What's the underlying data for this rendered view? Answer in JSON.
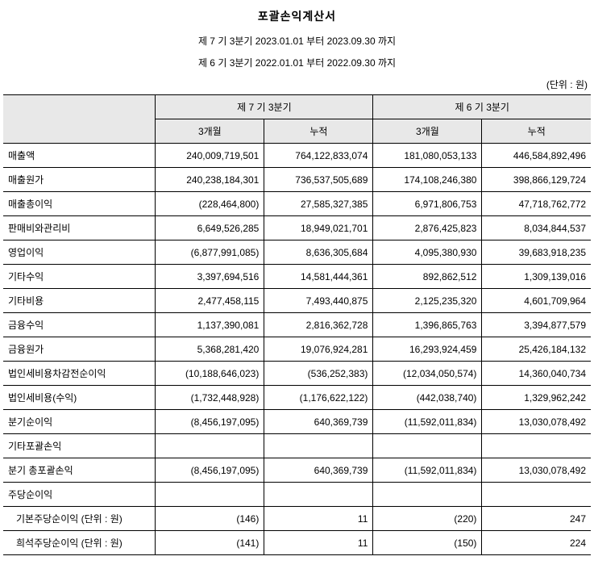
{
  "title": "포괄손익계산서",
  "subtitle1": "제 7 기 3분기 2023.01.01 부터 2023.09.30 까지",
  "subtitle2": "제 6 기 3분기 2022.01.01 부터 2022.09.30 까지",
  "unit": "(단위 : 원)",
  "colors": {
    "header_bg": "#e8e8e8",
    "border": "#000000",
    "bg": "#ffffff",
    "text": "#000000"
  },
  "columns": {
    "group1": "제 7 기 3분기",
    "group2": "제 6 기 3분기",
    "sub1": "3개월",
    "sub2": "누적"
  },
  "rows": [
    {
      "label": "매출액",
      "indent": false,
      "v": [
        "240,009,719,501",
        "764,122,833,074",
        "181,080,053,133",
        "446,584,892,496"
      ]
    },
    {
      "label": "매출원가",
      "indent": false,
      "v": [
        "240,238,184,301",
        "736,537,505,689",
        "174,108,246,380",
        "398,866,129,724"
      ]
    },
    {
      "label": "매출총이익",
      "indent": false,
      "v": [
        "(228,464,800)",
        "27,585,327,385",
        "6,971,806,753",
        "47,718,762,772"
      ]
    },
    {
      "label": "판매비와관리비",
      "indent": false,
      "v": [
        "6,649,526,285",
        "18,949,021,701",
        "2,876,425,823",
        "8,034,844,537"
      ]
    },
    {
      "label": "영업이익",
      "indent": false,
      "v": [
        "(6,877,991,085)",
        "8,636,305,684",
        "4,095,380,930",
        "39,683,918,235"
      ]
    },
    {
      "label": "기타수익",
      "indent": false,
      "v": [
        "3,397,694,516",
        "14,581,444,361",
        "892,862,512",
        "1,309,139,016"
      ]
    },
    {
      "label": "기타비용",
      "indent": false,
      "v": [
        "2,477,458,115",
        "7,493,440,875",
        "2,125,235,320",
        "4,601,709,964"
      ]
    },
    {
      "label": "금융수익",
      "indent": false,
      "v": [
        "1,137,390,081",
        "2,816,362,728",
        "1,396,865,763",
        "3,394,877,579"
      ]
    },
    {
      "label": "금융원가",
      "indent": false,
      "v": [
        "5,368,281,420",
        "19,076,924,281",
        "16,293,924,459",
        "25,426,184,132"
      ]
    },
    {
      "label": "법인세비용차감전순이익",
      "indent": false,
      "v": [
        "(10,188,646,023)",
        "(536,252,383)",
        "(12,034,050,574)",
        "14,360,040,734"
      ]
    },
    {
      "label": "법인세비용(수익)",
      "indent": false,
      "v": [
        "(1,732,448,928)",
        "(1,176,622,122)",
        "(442,038,740)",
        "1,329,962,242"
      ]
    },
    {
      "label": "분기순이익",
      "indent": false,
      "v": [
        "(8,456,197,095)",
        "640,369,739",
        "(11,592,011,834)",
        "13,030,078,492"
      ]
    },
    {
      "label": "기타포괄손익",
      "indent": false,
      "v": [
        "",
        "",
        "",
        ""
      ]
    },
    {
      "label": "분기 총포괄손익",
      "indent": false,
      "v": [
        "(8,456,197,095)",
        "640,369,739",
        "(11,592,011,834)",
        "13,030,078,492"
      ]
    },
    {
      "label": "주당순이익",
      "indent": false,
      "v": [
        "",
        "",
        "",
        ""
      ]
    },
    {
      "label": "기본주당순이익 (단위 : 원)",
      "indent": true,
      "v": [
        "(146)",
        "11",
        "(220)",
        "247"
      ]
    },
    {
      "label": "희석주당순이익 (단위 : 원)",
      "indent": true,
      "v": [
        "(141)",
        "11",
        "(150)",
        "224"
      ]
    }
  ]
}
